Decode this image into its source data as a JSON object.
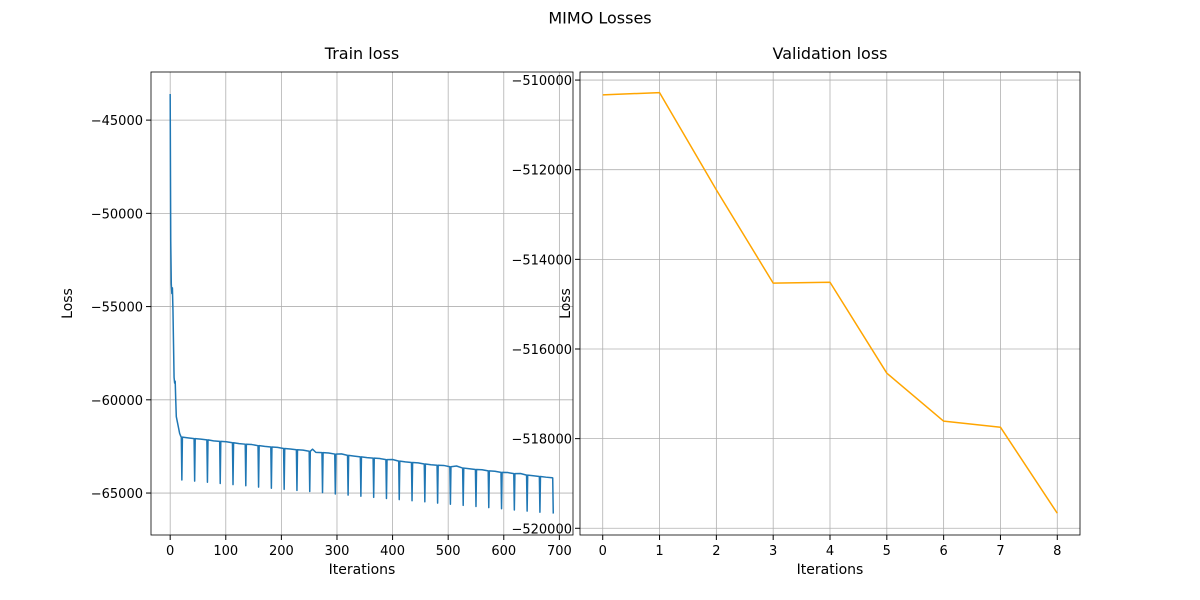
{
  "suptitle": "MIMO Losses",
  "chart_data": [
    {
      "type": "line",
      "title": "Train loss",
      "xlabel": "Iterations",
      "ylabel": "Loss",
      "grid": true,
      "xlim": [
        -34.5,
        724.5
      ],
      "ylim": [
        -67250,
        -42420
      ],
      "xticks": [
        0,
        100,
        200,
        300,
        400,
        500,
        600,
        700
      ],
      "yticks": [
        {
          "value": -65000,
          "label": "−65000"
        },
        {
          "value": -60000,
          "label": "−60000"
        },
        {
          "value": -55000,
          "label": "−55000"
        },
        {
          "value": -50000,
          "label": "−50000"
        },
        {
          "value": -45000,
          "label": "−45000"
        }
      ],
      "x": [
        0,
        1,
        2,
        3,
        4,
        5,
        6,
        7,
        8,
        9,
        10,
        11,
        13,
        15,
        17,
        19,
        20,
        21,
        22,
        32,
        43,
        44,
        45,
        55,
        66,
        67,
        68,
        78,
        89,
        90,
        91,
        101,
        112,
        113,
        114,
        124,
        135,
        136,
        137,
        147,
        158,
        159,
        160,
        170,
        181,
        182,
        183,
        193,
        204,
        205,
        206,
        216,
        227,
        228,
        229,
        239,
        250,
        251,
        252,
        256,
        262,
        273,
        274,
        275,
        285,
        296,
        297,
        298,
        308,
        319,
        320,
        321,
        331,
        342,
        343,
        344,
        354,
        365,
        366,
        367,
        377,
        388,
        389,
        390,
        400,
        411,
        412,
        413,
        423,
        434,
        435,
        436,
        446,
        457,
        458,
        459,
        469,
        480,
        481,
        482,
        492,
        503,
        504,
        505,
        515,
        526,
        527,
        528,
        538,
        549,
        550,
        551,
        561,
        572,
        573,
        574,
        584,
        595,
        596,
        597,
        607,
        618,
        619,
        620,
        630,
        641,
        642,
        643,
        653,
        664,
        665,
        666,
        676,
        687,
        688,
        689
      ],
      "series": [
        {
          "color": "#1f77b4",
          "values": [
            -43600,
            -51500,
            -53800,
            -54300,
            -54000,
            -55200,
            -57000,
            -58800,
            -59100,
            -59000,
            -60000,
            -60900,
            -61200,
            -61500,
            -61800,
            -61950,
            -62000,
            -64300,
            -62000,
            -62040,
            -62080,
            -64360,
            -62080,
            -62110,
            -62150,
            -64420,
            -62150,
            -62200,
            -62230,
            -64490,
            -62230,
            -62250,
            -62300,
            -64550,
            -62300,
            -62350,
            -62380,
            -64610,
            -62380,
            -62400,
            -62460,
            -64680,
            -62460,
            -62500,
            -62530,
            -64740,
            -62530,
            -62550,
            -62610,
            -64800,
            -62610,
            -62640,
            -62680,
            -64860,
            -62680,
            -62700,
            -62760,
            -64920,
            -62760,
            -62650,
            -62820,
            -62830,
            -64980,
            -62830,
            -62850,
            -62910,
            -65050,
            -62910,
            -62900,
            -62980,
            -65110,
            -62980,
            -63020,
            -63060,
            -65170,
            -63060,
            -63100,
            -63130,
            -65230,
            -63130,
            -63150,
            -63210,
            -65290,
            -63210,
            -63200,
            -63290,
            -65350,
            -63290,
            -63330,
            -63360,
            -65410,
            -63360,
            -63380,
            -63440,
            -65470,
            -63440,
            -63480,
            -63510,
            -65540,
            -63510,
            -63520,
            -63590,
            -65600,
            -63590,
            -63550,
            -63660,
            -65660,
            -63660,
            -63700,
            -63740,
            -65720,
            -63740,
            -63750,
            -63810,
            -65780,
            -63810,
            -63830,
            -63890,
            -65840,
            -63890,
            -63900,
            -63960,
            -65910,
            -63960,
            -63950,
            -64040,
            -65970,
            -64040,
            -64070,
            -64110,
            -66030,
            -64110,
            -64150,
            -64180,
            -64190,
            -66100
          ]
        }
      ]
    },
    {
      "type": "line",
      "title": "Validation loss",
      "xlabel": "Iterations",
      "ylabel": "Loss",
      "grid": true,
      "xlim": [
        -0.4,
        8.4
      ],
      "ylim": [
        -520150,
        -509820
      ],
      "xticks": [
        0,
        1,
        2,
        3,
        4,
        5,
        6,
        7,
        8
      ],
      "yticks": [
        {
          "value": -520000,
          "label": "−520000"
        },
        {
          "value": -518000,
          "label": "−518000"
        },
        {
          "value": -516000,
          "label": "−516000"
        },
        {
          "value": -514000,
          "label": "−514000"
        },
        {
          "value": -512000,
          "label": "−512000"
        },
        {
          "value": -510000,
          "label": "−510000"
        }
      ],
      "x": [
        0,
        1,
        2,
        3,
        4,
        5,
        6,
        7,
        8
      ],
      "series": [
        {
          "color": "orange",
          "values": [
            -510330,
            -510280,
            -512450,
            -514530,
            -514510,
            -516540,
            -517610,
            -517745,
            -519665
          ]
        }
      ]
    }
  ]
}
